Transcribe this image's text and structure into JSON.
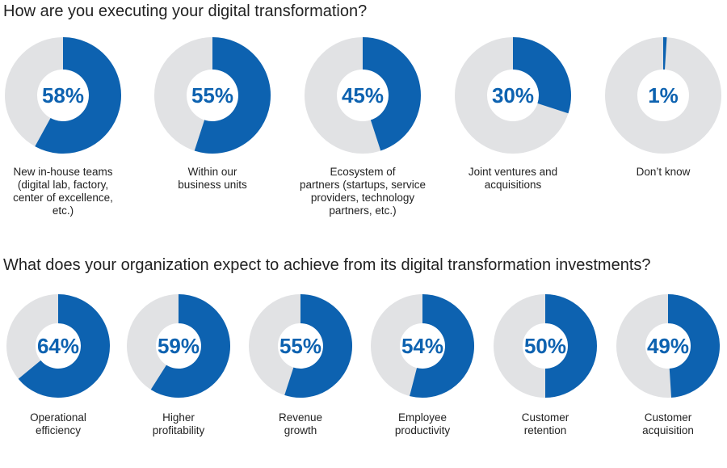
{
  "colors": {
    "accent": "#0d62b0",
    "track": "#e1e2e4"
  },
  "questions": {
    "q1": "How are you executing your digital transformation?",
    "q2": "What does your organization expect to achieve from its digital transformation investments?"
  },
  "chart_data": [
    {
      "type": "pie",
      "title": "How are you executing your digital transformation?",
      "unit": "%",
      "categories": [
        "New in-house teams (digital lab, factory, center of excellence, etc.)",
        "Within our business units",
        "Ecosystem of partners (startups, service providers, technology partners, etc.)",
        "Joint ventures and acquisitions",
        "Don’t know"
      ],
      "values": [
        58,
        55,
        45,
        30,
        1
      ],
      "value_labels": [
        "58%",
        "55%",
        "45%",
        "30%",
        "1%"
      ],
      "display_labels": [
        "New in-house teams\n(digital lab, factory,\ncenter of excellence,\netc.)",
        "Within our\nbusiness units",
        "Ecosystem of\npartners (startups, service\nproviders, technology\npartners, etc.)",
        "Joint ventures and\nacquisitions",
        "Don’t know"
      ]
    },
    {
      "type": "pie",
      "title": "What does your organization expect to achieve from its digital transformation investments?",
      "unit": "%",
      "categories": [
        "Operational efficiency",
        "Higher profitability",
        "Revenue growth",
        "Employee productivity",
        "Customer retention",
        "Customer acquisition"
      ],
      "values": [
        64,
        59,
        55,
        54,
        50,
        49
      ],
      "value_labels": [
        "64%",
        "59%",
        "55%",
        "54%",
        "50%",
        "49%"
      ],
      "display_labels": [
        "Operational\nefficiency",
        "Higher\nprofitability",
        "Revenue\ngrowth",
        "Employee\nproductivity",
        "Customer\nretention",
        "Customer\nacquisition"
      ]
    }
  ]
}
